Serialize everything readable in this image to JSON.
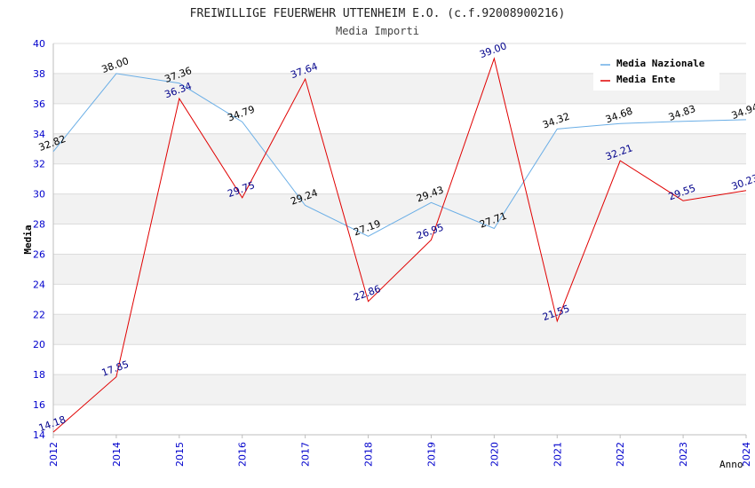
{
  "chart_data": {
    "type": "line",
    "title": "FREIWILLIGE FEUERWEHR UTTENHEIM E.O. (c.f.92008900216)",
    "subtitle": "Media Importi",
    "xlabel": "Anno",
    "ylabel": "Media",
    "ylim": [
      14,
      40
    ],
    "ytick_step": 2,
    "categories": [
      "2012",
      "2014",
      "2015",
      "2016",
      "2017",
      "2018",
      "2019",
      "2020",
      "2021",
      "2022",
      "2023",
      "2024"
    ],
    "series": [
      {
        "name": "Media Nazionale",
        "color": "#6aaee6",
        "label_color": "#000000",
        "values": [
          32.82,
          38.0,
          37.36,
          34.79,
          29.24,
          27.19,
          29.43,
          27.71,
          34.32,
          34.68,
          34.83,
          34.94
        ]
      },
      {
        "name": "Media Ente",
        "color": "#e00000",
        "label_color": "#00008b",
        "values": [
          14.18,
          17.85,
          36.34,
          29.75,
          37.64,
          22.86,
          26.95,
          39.0,
          21.55,
          32.21,
          29.55,
          30.23
        ]
      }
    ],
    "legend_position": "top-right",
    "grid": true,
    "tick_color": "#0000cc"
  }
}
